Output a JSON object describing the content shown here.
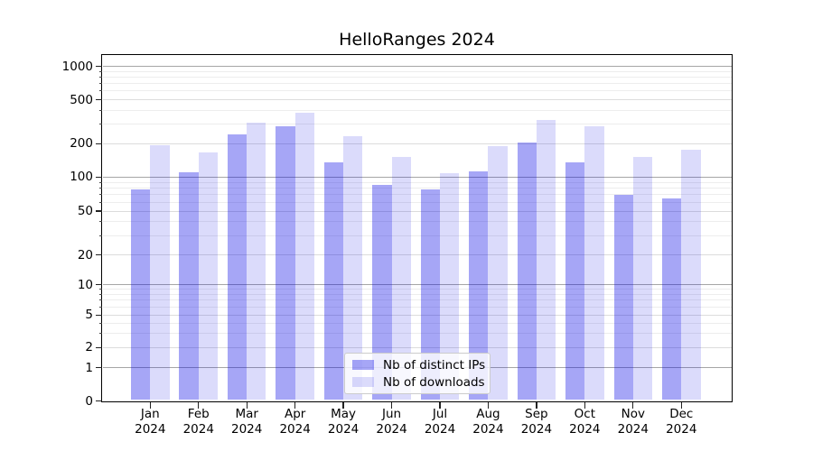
{
  "chart_data": {
    "type": "bar",
    "title": "HelloRanges 2024",
    "categories": [
      "Jan",
      "Feb",
      "Mar",
      "Apr",
      "May",
      "Jun",
      "Jul",
      "Aug",
      "Sep",
      "Oct",
      "Nov",
      "Dec"
    ],
    "category_year": "2024",
    "series": [
      {
        "name": "Nb of distinct IPs",
        "color": "rgba(0,0,230,0.35)",
        "values": [
          78,
          110,
          242,
          288,
          136,
          86,
          78,
          113,
          205,
          135,
          69,
          65
        ]
      },
      {
        "name": "Nb of downloads",
        "color": "rgba(0,0,230,0.14)",
        "values": [
          193,
          168,
          312,
          380,
          235,
          153,
          109,
          190,
          330,
          287,
          152,
          178
        ]
      }
    ],
    "xlabel": "",
    "ylabel": "",
    "yscale": "asinh-log",
    "ylim": [
      0,
      1270
    ],
    "yticks": [
      0,
      1,
      2,
      5,
      10,
      20,
      50,
      100,
      200,
      500,
      1000
    ],
    "ytick_labels": [
      "0",
      "1",
      "2",
      "5",
      "10",
      "20",
      "50",
      "100",
      "200",
      "500",
      "1000"
    ],
    "major_yticks": [
      1,
      10,
      100,
      1000
    ],
    "minor_yticks": [
      3,
      4,
      6,
      7,
      8,
      9,
      30,
      40,
      60,
      70,
      80,
      90,
      300,
      400,
      600,
      700,
      800,
      900
    ],
    "grid": true,
    "legend": {
      "position": "lower center"
    }
  },
  "colors": {
    "background": "#ffffff",
    "spine": "#000000",
    "grid_major": "#a6a6a6",
    "grid_labeled_minor": "#dcdcdc",
    "grid_minor": "#ededed",
    "text": "#000000",
    "legend_border": "#cccccc",
    "legend_bg": "rgba(255,255,255,0.8)"
  }
}
